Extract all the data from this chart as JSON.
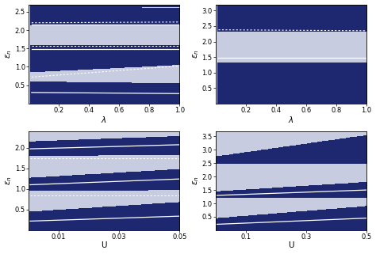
{
  "fig_width": 4.74,
  "fig_height": 3.21,
  "dpi": 100,
  "bg_color": "#c8cce0",
  "blue_color": "#1e2870",
  "white_color": "#ffffff",
  "n_bars": 70
}
